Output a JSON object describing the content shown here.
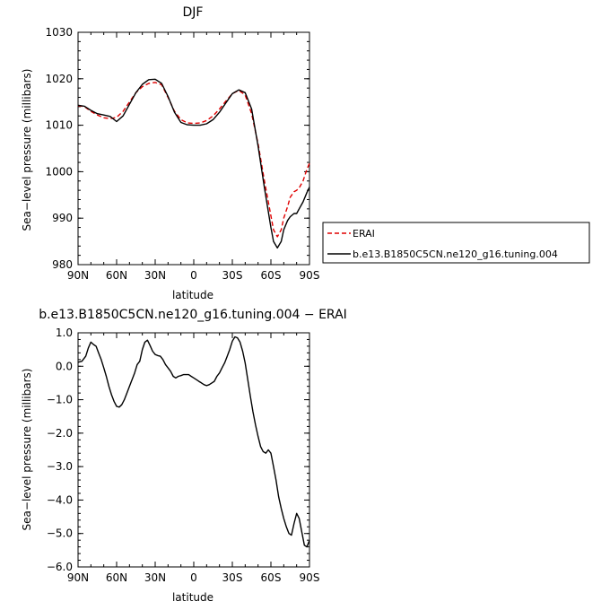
{
  "chart_data": [
    {
      "type": "line",
      "title": "DJF",
      "xlabel": "latitude",
      "ylabel": "Sea−level pressure (millibars)",
      "x_ticks": [
        90,
        60,
        30,
        0,
        -30,
        -60,
        -90
      ],
      "x_tick_labels": [
        "90N",
        "60N",
        "30N",
        "0",
        "30S",
        "60S",
        "90S"
      ],
      "xlim": [
        90,
        -90
      ],
      "y_ticks": [
        980,
        990,
        1000,
        1010,
        1020,
        1030
      ],
      "y_tick_labels": [
        "980",
        "990",
        "1000",
        "1010",
        "1020",
        "1030"
      ],
      "ylim": [
        980,
        1030
      ],
      "legend_position": "right",
      "series": [
        {
          "name": "ERAI",
          "color": "#e00000",
          "dash": "dashed",
          "x": [
            90,
            85,
            80,
            75,
            70,
            65,
            60,
            55,
            50,
            45,
            40,
            35,
            30,
            25,
            20,
            15,
            10,
            5,
            0,
            -5,
            -10,
            -15,
            -20,
            -25,
            -30,
            -35,
            -40,
            -45,
            -50,
            -55,
            -60,
            -62,
            -65,
            -68,
            -70,
            -73,
            -75,
            -78,
            -80,
            -82,
            -85,
            -88,
            -90
          ],
          "y": [
            1014.2,
            1014.0,
            1013.0,
            1012.2,
            1011.6,
            1011.4,
            1011.7,
            1013.0,
            1015.0,
            1017.0,
            1018.3,
            1019.0,
            1019.2,
            1018.7,
            1016.0,
            1013.0,
            1011.2,
            1010.5,
            1010.4,
            1010.5,
            1011.0,
            1012.0,
            1013.5,
            1015.2,
            1016.8,
            1017.5,
            1016.5,
            1012.5,
            1006.0,
            998.0,
            990.5,
            987.5,
            986.0,
            987.5,
            990.0,
            992.5,
            994.5,
            995.7,
            996.0,
            996.5,
            998.0,
            1000.5,
            1001.8
          ]
        },
        {
          "name": "b.e13.B1850C5CN.ne120_g16.tuning.004",
          "color": "#000000",
          "dash": "solid",
          "x": [
            90,
            85,
            80,
            75,
            70,
            65,
            60,
            55,
            50,
            45,
            40,
            35,
            30,
            25,
            20,
            15,
            10,
            5,
            0,
            -5,
            -10,
            -15,
            -20,
            -25,
            -30,
            -35,
            -40,
            -45,
            -50,
            -55,
            -60,
            -62,
            -65,
            -68,
            -70,
            -73,
            -75,
            -78,
            -80,
            -82,
            -85,
            -88,
            -90
          ],
          "y": [
            1014.3,
            1014.1,
            1013.2,
            1012.5,
            1012.2,
            1011.9,
            1010.8,
            1012.0,
            1014.5,
            1017.0,
            1018.8,
            1019.8,
            1019.9,
            1019.0,
            1016.2,
            1012.8,
            1010.6,
            1010.1,
            1010.0,
            1010.0,
            1010.3,
            1011.2,
            1012.8,
            1014.8,
            1016.8,
            1017.6,
            1017.0,
            1013.5,
            1005.5,
            996.5,
            988.0,
            985.0,
            983.6,
            985.0,
            987.5,
            989.5,
            990.3,
            991.0,
            991.0,
            992.0,
            993.5,
            995.5,
            996.7
          ]
        }
      ]
    },
    {
      "type": "line",
      "title": "b.e13.B1850C5CN.ne120_g16.tuning.004 − ERAI",
      "xlabel": "latitude",
      "ylabel": "Sea−level pressure (millibars)",
      "x_ticks": [
        90,
        60,
        30,
        0,
        -30,
        -60,
        -90
      ],
      "x_tick_labels": [
        "90N",
        "60N",
        "30N",
        "0",
        "30S",
        "60S",
        "90S"
      ],
      "xlim": [
        90,
        -90
      ],
      "y_ticks": [
        1.0,
        0.0,
        -1.0,
        -2.0,
        -3.0,
        -4.0,
        -5.0,
        -6.0
      ],
      "y_tick_labels": [
        "1.0",
        "0.0",
        "−1.0",
        "−2.0",
        "−3.0",
        "−4.0",
        "−5.0",
        "−6.0"
      ],
      "ylim": [
        -6,
        1
      ],
      "series": [
        {
          "color": "#000000",
          "dash": "solid",
          "x": [
            90,
            87,
            84,
            82,
            80,
            78,
            76,
            74,
            72,
            70,
            68,
            66,
            64,
            62,
            60,
            58,
            56,
            54,
            52,
            50,
            48,
            46,
            44,
            42,
            40,
            38,
            36,
            34,
            32,
            30,
            28,
            26,
            24,
            22,
            20,
            18,
            16,
            14,
            12,
            10,
            8,
            6,
            4,
            2,
            0,
            -2,
            -4,
            -6,
            -8,
            -10,
            -12,
            -14,
            -16,
            -18,
            -20,
            -22,
            -24,
            -26,
            -28,
            -30,
            -32,
            -34,
            -36,
            -38,
            -40,
            -42,
            -44,
            -46,
            -48,
            -50,
            -52,
            -54,
            -56,
            -58,
            -60,
            -62,
            -64,
            -66,
            -68,
            -70,
            -72,
            -74,
            -76,
            -78,
            -80,
            -82,
            -84,
            -86,
            -88,
            -90
          ],
          "y": [
            0.12,
            0.15,
            0.3,
            0.55,
            0.72,
            0.65,
            0.6,
            0.4,
            0.2,
            -0.05,
            -0.3,
            -0.6,
            -0.85,
            -1.05,
            -1.2,
            -1.22,
            -1.15,
            -1.0,
            -0.8,
            -0.6,
            -0.4,
            -0.2,
            0.05,
            0.15,
            0.5,
            0.72,
            0.78,
            0.62,
            0.45,
            0.35,
            0.32,
            0.3,
            0.2,
            0.05,
            -0.05,
            -0.15,
            -0.3,
            -0.35,
            -0.3,
            -0.28,
            -0.25,
            -0.25,
            -0.25,
            -0.3,
            -0.35,
            -0.4,
            -0.45,
            -0.5,
            -0.55,
            -0.58,
            -0.55,
            -0.5,
            -0.45,
            -0.3,
            -0.2,
            -0.05,
            0.1,
            0.3,
            0.5,
            0.75,
            0.88,
            0.85,
            0.72,
            0.45,
            0.1,
            -0.4,
            -0.9,
            -1.35,
            -1.75,
            -2.1,
            -2.4,
            -2.55,
            -2.6,
            -2.5,
            -2.6,
            -3.0,
            -3.4,
            -3.9,
            -4.25,
            -4.55,
            -4.8,
            -5.0,
            -5.05,
            -4.7,
            -4.4,
            -4.55,
            -4.95,
            -5.35,
            -5.4,
            -5.2
          ]
        }
      ]
    }
  ]
}
